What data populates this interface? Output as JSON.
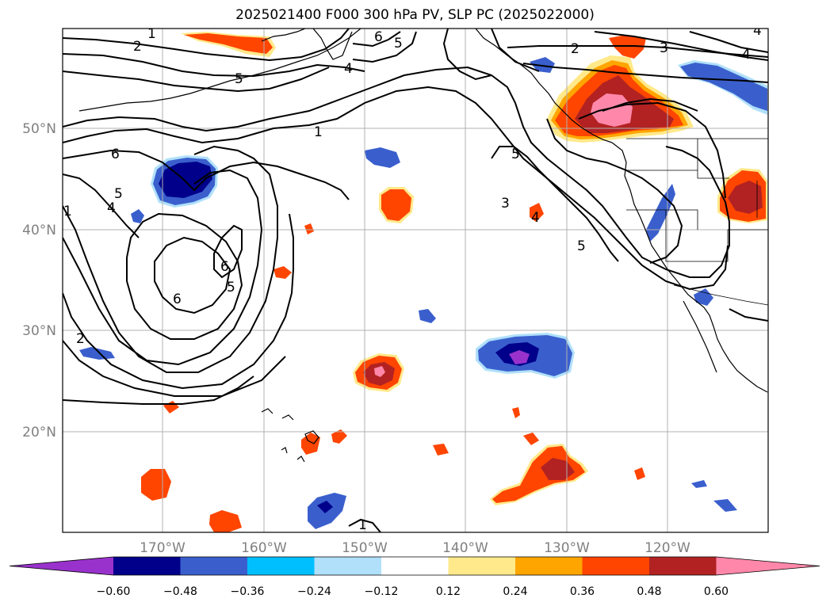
{
  "title": "2025021400 F000 300 hPa PV, SLP PC (2025022000)",
  "longitude_labels": [
    "170°W",
    "160°W",
    "150°W",
    "140°W",
    "130°W",
    "120°W"
  ],
  "latitude_labels": [
    "50°N",
    "40°N",
    "30°N",
    "20°N"
  ],
  "colorbar": {
    "tick_labels": [
      "−0.60",
      "−0.48",
      "−0.36",
      "−0.24",
      "−0.12",
      "0.12",
      "0.24",
      "0.36",
      "0.48",
      "0.60"
    ],
    "colors": [
      "#9932cc",
      "#00008b",
      "#3a5fcd",
      "#00bfff",
      "#b0e0fa",
      "#ffffff",
      "#ffe98a",
      "#ffa500",
      "#ff4500",
      "#b22222",
      "#ff88aa"
    ]
  },
  "contour_labels": [
    "1",
    "2",
    "6",
    "5",
    "4",
    "5",
    "4",
    "2",
    "3",
    "4",
    "1",
    "6",
    "5",
    "4",
    "1",
    "6",
    "5",
    "6",
    "2",
    "5",
    "3",
    "5",
    "4",
    "1"
  ],
  "fill_colors": {
    "neg_light": "#b0e0fa",
    "neg_mid": "#3a5fcd",
    "neg_dark": "#00008b",
    "neg_extreme": "#9932cc",
    "pos_light": "#ffe98a",
    "pos_mid": "#ffa500",
    "pos_strong": "#ff4500",
    "pos_dark": "#b22222",
    "pos_extreme": "#ff88aa"
  }
}
